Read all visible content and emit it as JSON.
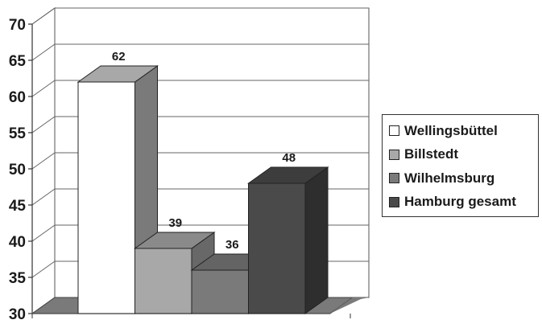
{
  "chart_data": {
    "type": "bar",
    "title": "",
    "xlabel": "",
    "ylabel": "",
    "ylim": [
      30,
      70
    ],
    "yticks": [
      30,
      35,
      40,
      45,
      50,
      55,
      60,
      65,
      70
    ],
    "grid": true,
    "three_d": true,
    "legend_position": "right",
    "series": [
      {
        "name": "Wellingsbüttel",
        "value": 62,
        "color": "#ffffff"
      },
      {
        "name": "Billstedt",
        "value": 39,
        "color": "#a8a8a8"
      },
      {
        "name": "Wilhelmsburg",
        "value": 36,
        "color": "#7a7a7a"
      },
      {
        "name": "Hamburg gesamt",
        "value": 48,
        "color": "#4a4a4a"
      }
    ]
  }
}
